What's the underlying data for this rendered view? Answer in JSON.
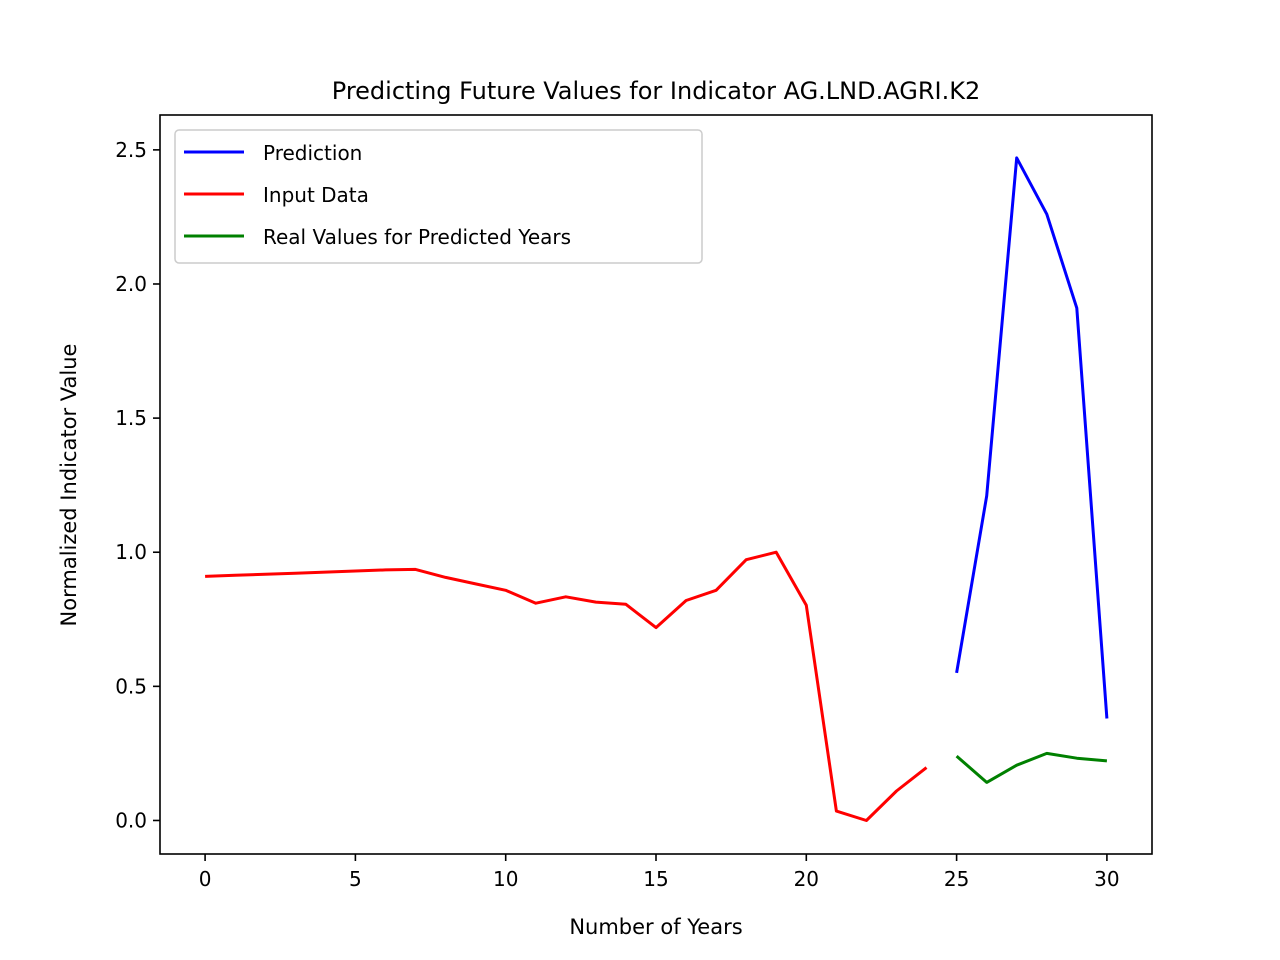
{
  "chart_data": {
    "type": "line",
    "title": "Predicting Future Values for Indicator AG.LND.AGRI.K2",
    "xlabel": "Number of Years",
    "ylabel": "Normalized Indicator Value",
    "xlim": [
      -1.5,
      31.5
    ],
    "ylim": [
      -0.125,
      2.63
    ],
    "xticks": [
      0,
      5,
      10,
      15,
      20,
      25,
      30
    ],
    "xtick_labels": [
      "0",
      "5",
      "10",
      "15",
      "20",
      "25",
      "30"
    ],
    "yticks": [
      0.0,
      0.5,
      1.0,
      1.5,
      2.0,
      2.5
    ],
    "ytick_labels": [
      "0.0",
      "0.5",
      "1.0",
      "1.5",
      "2.0",
      "2.5"
    ],
    "grid": false,
    "legend_position": "upper-left",
    "series": [
      {
        "name": "Prediction",
        "color": "#0000ff",
        "x": [
          25,
          26,
          27,
          28,
          29,
          30
        ],
        "y": [
          0.55,
          1.21,
          2.47,
          2.26,
          1.91,
          0.38
        ]
      },
      {
        "name": "Input Data",
        "color": "#ff0000",
        "x": [
          0,
          1,
          2,
          3,
          4,
          5,
          6,
          7,
          8,
          9,
          10,
          11,
          12,
          13,
          14,
          15,
          16,
          17,
          18,
          19,
          20,
          21,
          22,
          23,
          24
        ],
        "y": [
          0.91,
          0.914,
          0.918,
          0.922,
          0.926,
          0.93,
          0.934,
          0.936,
          0.906,
          0.882,
          0.858,
          0.81,
          0.834,
          0.814,
          0.806,
          0.719,
          0.82,
          0.858,
          0.972,
          1.0,
          0.802,
          0.035,
          0.0,
          0.11,
          0.197
        ]
      },
      {
        "name": "Real Values for Predicted Years",
        "color": "#008000",
        "x": [
          25,
          26,
          27,
          28,
          29,
          30
        ],
        "y": [
          0.24,
          0.142,
          0.206,
          0.25,
          0.232,
          0.222
        ]
      }
    ]
  }
}
